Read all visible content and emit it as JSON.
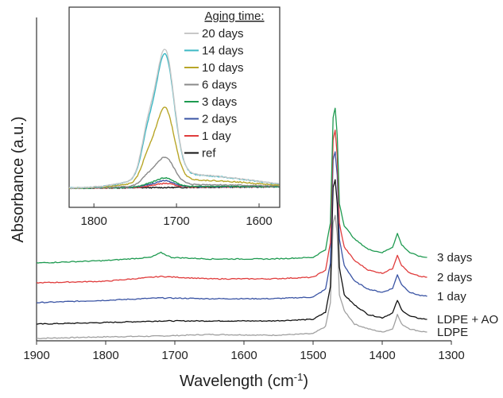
{
  "chart_data": [
    {
      "type": "line",
      "title": "",
      "xlabel": "Wavelength (cm⁻¹)",
      "ylabel": "Absorbance (a.u.)",
      "xlim": [
        1900,
        1300
      ],
      "x_reversed": true,
      "x_ticks": [
        "1900",
        "1800",
        "1700",
        "1600",
        "1500",
        "1400",
        "1300"
      ],
      "y_ticks_shown": false,
      "series": [
        {
          "name": "LDPE",
          "color": "#a0a0a0",
          "baseline": 0.0,
          "points": [
            [
              1900,
              0.0
            ],
            [
              1800,
              0.02
            ],
            [
              1720,
              0.03
            ],
            [
              1650,
              0.05
            ],
            [
              1560,
              0.04
            ],
            [
              1500,
              0.06
            ],
            [
              1482,
              0.15
            ],
            [
              1475,
              0.45
            ],
            [
              1471,
              1.45
            ],
            [
              1468,
              1.55
            ],
            [
              1465,
              1.3
            ],
            [
              1462,
              0.55
            ],
            [
              1455,
              0.35
            ],
            [
              1440,
              0.18
            ],
            [
              1420,
              0.12
            ],
            [
              1400,
              0.08
            ],
            [
              1385,
              0.12
            ],
            [
              1378,
              0.3
            ],
            [
              1372,
              0.18
            ],
            [
              1360,
              0.12
            ],
            [
              1345,
              0.09
            ],
            [
              1335,
              0.08
            ]
          ]
        },
        {
          "name": "LDPE + AO",
          "color": "#111111",
          "baseline": 0.18,
          "points": [
            [
              1900,
              0.18
            ],
            [
              1800,
              0.2
            ],
            [
              1720,
              0.22
            ],
            [
              1650,
              0.22
            ],
            [
              1560,
              0.22
            ],
            [
              1500,
              0.24
            ],
            [
              1482,
              0.33
            ],
            [
              1475,
              0.65
            ],
            [
              1471,
              1.9
            ],
            [
              1468,
              2.0
            ],
            [
              1465,
              1.7
            ],
            [
              1462,
              0.9
            ],
            [
              1455,
              0.55
            ],
            [
              1440,
              0.42
            ],
            [
              1420,
              0.3
            ],
            [
              1400,
              0.26
            ],
            [
              1385,
              0.32
            ],
            [
              1378,
              0.48
            ],
            [
              1372,
              0.36
            ],
            [
              1360,
              0.28
            ],
            [
              1345,
              0.25
            ],
            [
              1335,
              0.24
            ]
          ]
        },
        {
          "name": "1 day",
          "color": "#3a54a4",
          "baseline": 0.45,
          "points": [
            [
              1900,
              0.45
            ],
            [
              1800,
              0.48
            ],
            [
              1720,
              0.51
            ],
            [
              1650,
              0.5
            ],
            [
              1560,
              0.5
            ],
            [
              1500,
              0.52
            ],
            [
              1482,
              0.62
            ],
            [
              1475,
              0.95
            ],
            [
              1471,
              2.25
            ],
            [
              1468,
              2.35
            ],
            [
              1465,
              2.05
            ],
            [
              1462,
              1.25
            ],
            [
              1455,
              0.92
            ],
            [
              1440,
              0.72
            ],
            [
              1420,
              0.62
            ],
            [
              1400,
              0.58
            ],
            [
              1385,
              0.63
            ],
            [
              1378,
              0.8
            ],
            [
              1372,
              0.68
            ],
            [
              1360,
              0.58
            ],
            [
              1345,
              0.54
            ],
            [
              1335,
              0.53
            ]
          ]
        },
        {
          "name": "2 days",
          "color": "#e03c3c",
          "baseline": 0.7,
          "points": [
            [
              1900,
              0.7
            ],
            [
              1800,
              0.72
            ],
            [
              1720,
              0.78
            ],
            [
              1650,
              0.75
            ],
            [
              1560,
              0.75
            ],
            [
              1500,
              0.77
            ],
            [
              1482,
              0.86
            ],
            [
              1475,
              1.2
            ],
            [
              1471,
              2.5
            ],
            [
              1468,
              2.62
            ],
            [
              1465,
              2.3
            ],
            [
              1462,
              1.45
            ],
            [
              1455,
              1.15
            ],
            [
              1440,
              0.98
            ],
            [
              1420,
              0.86
            ],
            [
              1400,
              0.82
            ],
            [
              1385,
              0.88
            ],
            [
              1378,
              1.05
            ],
            [
              1372,
              0.92
            ],
            [
              1360,
              0.82
            ],
            [
              1345,
              0.78
            ],
            [
              1335,
              0.77
            ]
          ]
        },
        {
          "name": "3 days",
          "color": "#1e9a50",
          "baseline": 0.95,
          "points": [
            [
              1900,
              0.95
            ],
            [
              1800,
              0.98
            ],
            [
              1735,
              1.02
            ],
            [
              1720,
              1.08
            ],
            [
              1705,
              1.02
            ],
            [
              1650,
              1.0
            ],
            [
              1560,
              1.0
            ],
            [
              1500,
              1.02
            ],
            [
              1482,
              1.12
            ],
            [
              1475,
              1.45
            ],
            [
              1471,
              2.78
            ],
            [
              1468,
              2.9
            ],
            [
              1465,
              2.55
            ],
            [
              1462,
              1.7
            ],
            [
              1455,
              1.42
            ],
            [
              1440,
              1.25
            ],
            [
              1420,
              1.12
            ],
            [
              1400,
              1.08
            ],
            [
              1385,
              1.15
            ],
            [
              1378,
              1.32
            ],
            [
              1372,
              1.18
            ],
            [
              1360,
              1.08
            ],
            [
              1345,
              1.03
            ],
            [
              1335,
              1.02
            ]
          ]
        }
      ]
    },
    {
      "type": "line",
      "title": "",
      "xlabel": "",
      "ylabel": "",
      "xlim": [
        1830,
        1575
      ],
      "x_reversed": true,
      "x_ticks": [
        "1800",
        "1700",
        "1600"
      ],
      "y_ticks_shown": false,
      "legend_title": "Aging time:",
      "legend_position": "top-right",
      "series": [
        {
          "name": "20 days",
          "color": "#c8c8c8",
          "peak": 1.0,
          "shoulder": 0.62
        },
        {
          "name": "14 days",
          "color": "#3db8c4",
          "peak": 0.97,
          "shoulder": 0.55
        },
        {
          "name": "10 days",
          "color": "#b8a628",
          "peak": 0.58,
          "shoulder": 0.32
        },
        {
          "name": "6 days",
          "color": "#8a8a8a",
          "peak": 0.22,
          "shoulder": 0.12
        },
        {
          "name": "3 days",
          "color": "#1e9a50",
          "peak": 0.07,
          "shoulder": 0.03
        },
        {
          "name": "2 days",
          "color": "#3a54a4",
          "peak": 0.05,
          "shoulder": 0.02
        },
        {
          "name": "1 day",
          "color": "#e03c3c",
          "peak": 0.03,
          "shoulder": 0.01
        },
        {
          "name": "ref",
          "color": "#111111",
          "peak": 0.0,
          "shoulder": 0.0
        }
      ]
    }
  ]
}
